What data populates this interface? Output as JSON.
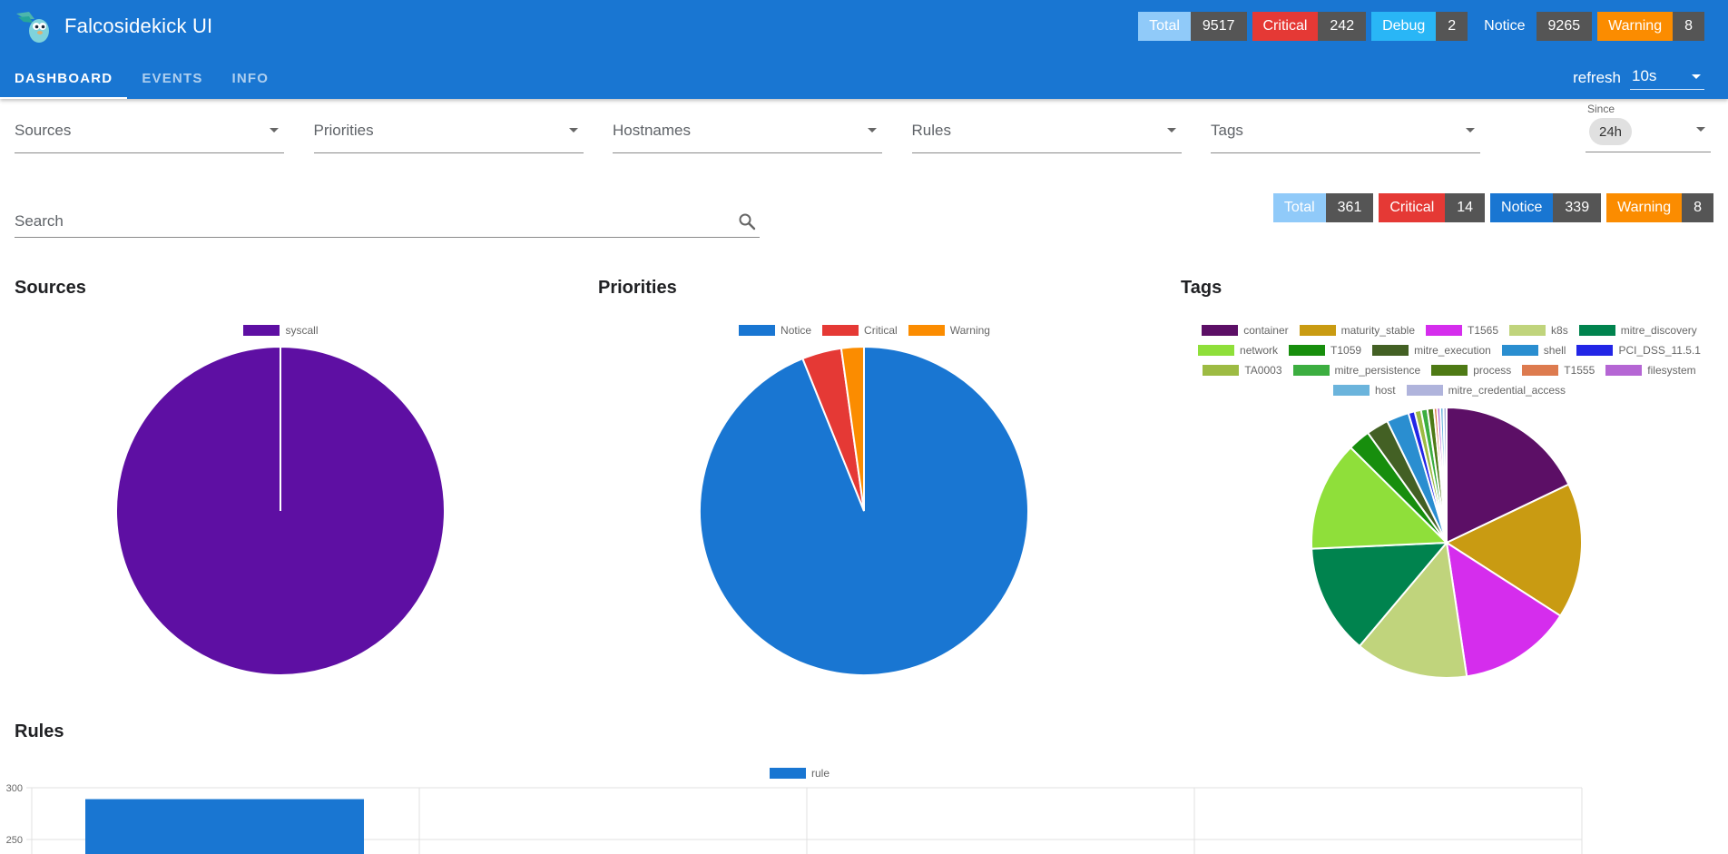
{
  "app": {
    "title": "Falcosidekick UI"
  },
  "header_counts": [
    {
      "label": "Total",
      "value": "9517",
      "style": "b-total"
    },
    {
      "label": "Critical",
      "value": "242",
      "style": "b-critical"
    },
    {
      "label": "Debug",
      "value": "2",
      "style": "b-debug"
    },
    {
      "label": "Notice",
      "value": "9265",
      "style": "b-notice-top"
    },
    {
      "label": "Warning",
      "value": "8",
      "style": "b-warning"
    }
  ],
  "tabs": [
    {
      "label": "DASHBOARD",
      "active": true
    },
    {
      "label": "EVENTS",
      "active": false
    },
    {
      "label": "INFO",
      "active": false
    }
  ],
  "refresh": {
    "label": "refresh",
    "value": "10s"
  },
  "filters": [
    {
      "label": "Sources"
    },
    {
      "label": "Priorities"
    },
    {
      "label": "Hostnames"
    },
    {
      "label": "Rules"
    },
    {
      "label": "Tags"
    }
  ],
  "since": {
    "label": "Since",
    "value": "24h"
  },
  "search": {
    "placeholder": "Search",
    "value": ""
  },
  "filtered_counts": [
    {
      "label": "Total",
      "value": "361",
      "style": "b-total"
    },
    {
      "label": "Critical",
      "value": "14",
      "style": "b-critical"
    },
    {
      "label": "Notice",
      "value": "339",
      "style": "b-notice"
    },
    {
      "label": "Warning",
      "value": "8",
      "style": "b-warning"
    }
  ],
  "sections": {
    "sources": "Sources",
    "priorities": "Priorities",
    "tags": "Tags",
    "rules": "Rules"
  },
  "chart_data": [
    {
      "type": "pie",
      "title": "Sources",
      "categories": [
        "syscall"
      ],
      "values": [
        361
      ],
      "colors": [
        "#5e0fa3"
      ],
      "legend": "top"
    },
    {
      "type": "pie",
      "title": "Priorities",
      "categories": [
        "Notice",
        "Critical",
        "Warning"
      ],
      "values": [
        339,
        14,
        8
      ],
      "colors": [
        "#1976d2",
        "#e53935",
        "#fb8c00"
      ],
      "legend": "top"
    },
    {
      "type": "pie",
      "title": "Tags",
      "categories": [
        "container",
        "maturity_stable",
        "T1565",
        "k8s",
        "mitre_discovery",
        "network",
        "T1059",
        "mitre_execution",
        "shell",
        "PCI_DSS_11.5.1",
        "TA0003",
        "mitre_persistence",
        "process",
        "T1555",
        "filesystem",
        "host",
        "mitre_credential_access"
      ],
      "values": [
        94,
        85,
        71,
        71,
        69,
        69,
        14,
        14,
        14,
        4,
        4,
        4,
        4,
        2,
        2,
        2,
        2
      ],
      "colors": [
        "#5c0f66",
        "#c99b12",
        "#d52ded",
        "#c0d47c",
        "#00834e",
        "#8fdf3a",
        "#178e0d",
        "#436024",
        "#2a8ed0",
        "#2225e6",
        "#9dbb43",
        "#3cae40",
        "#4e7a15",
        "#dd7b4f",
        "#b566d4",
        "#6bb4dc",
        "#b0b4dc"
      ],
      "legend": "top"
    },
    {
      "type": "bar",
      "title": "Rules",
      "series": [
        {
          "name": "rule",
          "values": [
            289
          ]
        }
      ],
      "y_ticks_visible": [
        300,
        250
      ],
      "colors": [
        "#1976d2"
      ],
      "legend": "top"
    }
  ]
}
